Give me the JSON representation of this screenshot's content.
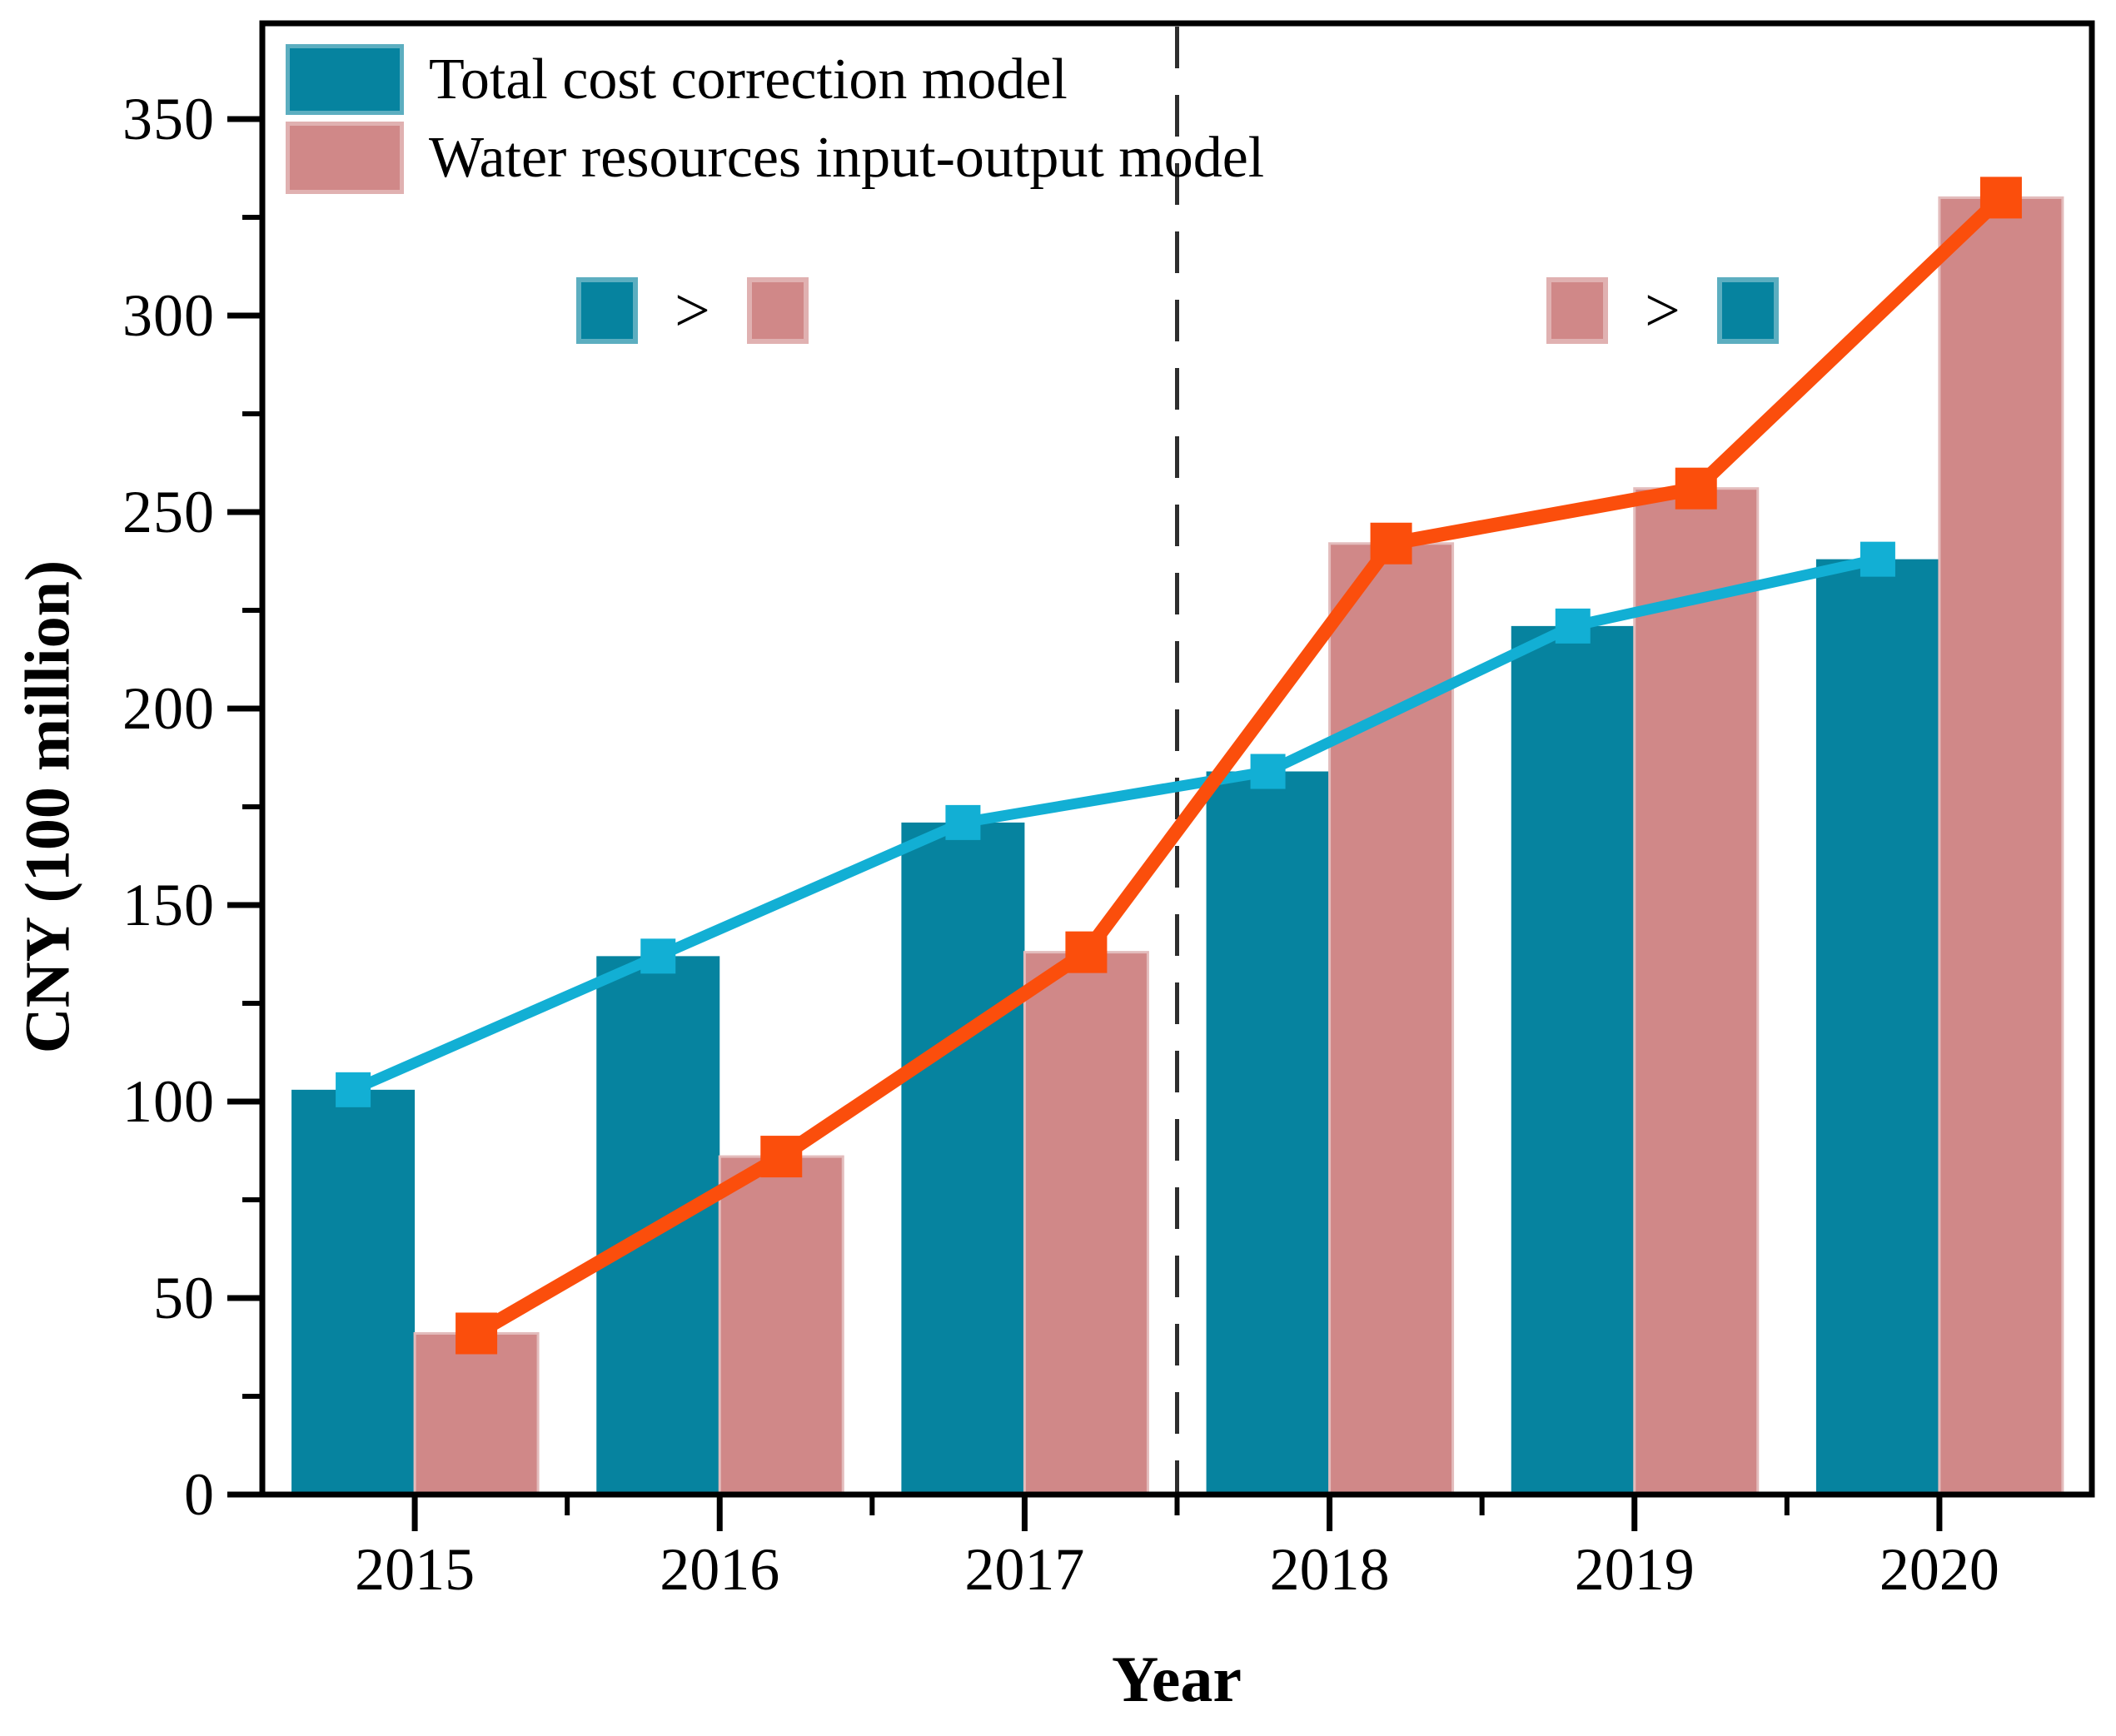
{
  "chart_data": {
    "type": "bar",
    "subtype": "grouped-bars-with-overlaid-lines",
    "title": "",
    "xlabel": "Year",
    "ylabel": "CNY (100 million)",
    "categories": [
      "2015",
      "2016",
      "2017",
      "2018",
      "2019",
      "2020"
    ],
    "series": [
      {
        "name": "Total cost correction model",
        "bar_color": "#06839F",
        "line_color": "#12AFD4",
        "marker": "square",
        "values": [
          103,
          137,
          171,
          184,
          221,
          238
        ]
      },
      {
        "name": "Water resources input-output model",
        "bar_color": "#D08888",
        "bar_edge_color": "#E3BCBC",
        "line_color": "#FB4E0C",
        "marker": "square",
        "values": [
          41,
          86,
          138,
          242,
          256,
          330
        ]
      }
    ],
    "ylim": [
      0,
      350
    ],
    "y_ticks": [
      0,
      50,
      100,
      150,
      200,
      250,
      300,
      350
    ],
    "y_minor_step": 25,
    "grid": false,
    "legend_position": "top-left-inside",
    "divider": {
      "style": "dashed",
      "color": "#2E2E2E",
      "between_categories": [
        "2017",
        "2018"
      ]
    },
    "annotations": [
      {
        "id": "pre-divider",
        "left_swatch_series": 0,
        "operator": ">",
        "right_swatch_series": 1
      },
      {
        "id": "post-divider",
        "left_swatch_series": 1,
        "operator": ">",
        "right_swatch_series": 0
      }
    ],
    "axis_color": "#000000",
    "background_color": "#FFFFFF"
  }
}
